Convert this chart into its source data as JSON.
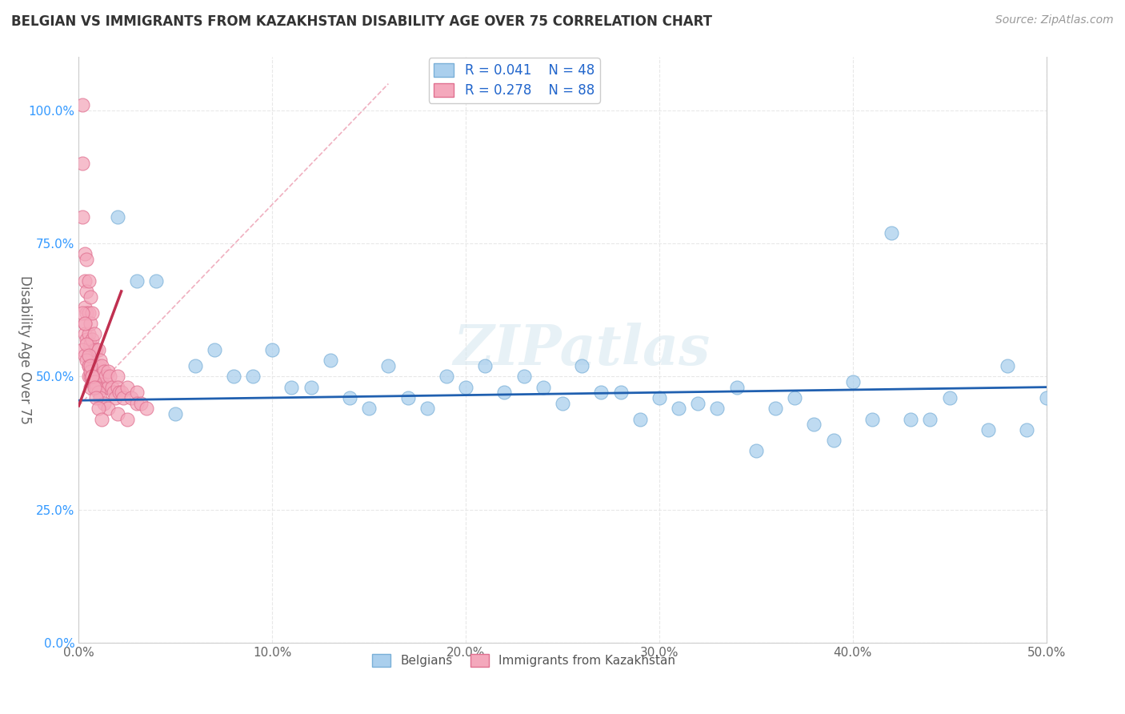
{
  "title": "BELGIAN VS IMMIGRANTS FROM KAZAKHSTAN DISABILITY AGE OVER 75 CORRELATION CHART",
  "source": "Source: ZipAtlas.com",
  "ylabel": "Disability Age Over 75",
  "xlim": [
    0.0,
    0.5
  ],
  "ylim": [
    0.0,
    1.1
  ],
  "x_ticks": [
    0.0,
    0.1,
    0.2,
    0.3,
    0.4,
    0.5
  ],
  "x_tick_labels": [
    "0.0%",
    "10.0%",
    "20.0%",
    "30.0%",
    "40.0%",
    "50.0%"
  ],
  "y_ticks": [
    0.0,
    0.25,
    0.5,
    0.75,
    1.0
  ],
  "y_tick_labels": [
    "0.0%",
    "25.0%",
    "50.0%",
    "75.0%",
    "100.0%"
  ],
  "belgian_color": "#aacfed",
  "kazakh_color": "#f4a8bc",
  "belgian_edge": "#7ab0d8",
  "kazakh_edge": "#e07090",
  "trend_blue": "#2060b0",
  "trend_pink": "#c03050",
  "ref_line_color": "#f0b0c0",
  "grid_color": "#e8e8e8",
  "R_blue": 0.041,
  "N_blue": 48,
  "R_pink": 0.278,
  "N_pink": 88,
  "watermark": "ZIPatlas",
  "blue_trend_x": [
    0.0,
    0.5
  ],
  "blue_trend_y": [
    0.455,
    0.48
  ],
  "pink_trend_x": [
    0.0,
    0.022
  ],
  "pink_trend_y": [
    0.445,
    0.66
  ],
  "ref_line_x": [
    0.0,
    0.16
  ],
  "ref_line_y": [
    0.445,
    1.05
  ],
  "belgians_x": [
    0.02,
    0.04,
    0.07,
    0.09,
    0.1,
    0.13,
    0.16,
    0.19,
    0.21,
    0.23,
    0.26,
    0.28,
    0.3,
    0.32,
    0.34,
    0.37,
    0.4,
    0.42,
    0.45,
    0.48,
    0.03,
    0.06,
    0.08,
    0.11,
    0.14,
    0.17,
    0.2,
    0.24,
    0.27,
    0.31,
    0.33,
    0.36,
    0.38,
    0.41,
    0.44,
    0.47,
    0.49,
    0.12,
    0.15,
    0.18,
    0.22,
    0.25,
    0.29,
    0.35,
    0.39,
    0.43,
    0.5,
    0.05
  ],
  "belgians_y": [
    0.8,
    0.68,
    0.55,
    0.5,
    0.55,
    0.53,
    0.52,
    0.5,
    0.52,
    0.5,
    0.52,
    0.47,
    0.46,
    0.45,
    0.48,
    0.46,
    0.49,
    0.77,
    0.46,
    0.52,
    0.68,
    0.52,
    0.5,
    0.48,
    0.46,
    0.46,
    0.48,
    0.48,
    0.47,
    0.44,
    0.44,
    0.44,
    0.41,
    0.42,
    0.42,
    0.4,
    0.4,
    0.48,
    0.44,
    0.44,
    0.47,
    0.45,
    0.42,
    0.36,
    0.38,
    0.42,
    0.46,
    0.43
  ],
  "kazakh_x": [
    0.002,
    0.002,
    0.002,
    0.003,
    0.003,
    0.003,
    0.003,
    0.003,
    0.004,
    0.004,
    0.004,
    0.004,
    0.005,
    0.005,
    0.005,
    0.005,
    0.005,
    0.005,
    0.006,
    0.006,
    0.006,
    0.006,
    0.006,
    0.006,
    0.007,
    0.007,
    0.007,
    0.007,
    0.007,
    0.008,
    0.008,
    0.008,
    0.008,
    0.009,
    0.009,
    0.009,
    0.01,
    0.01,
    0.01,
    0.01,
    0.011,
    0.011,
    0.012,
    0.012,
    0.013,
    0.013,
    0.014,
    0.015,
    0.015,
    0.016,
    0.017,
    0.018,
    0.019,
    0.02,
    0.02,
    0.021,
    0.022,
    0.023,
    0.025,
    0.027,
    0.03,
    0.03,
    0.032,
    0.035,
    0.002,
    0.003,
    0.004,
    0.005,
    0.006,
    0.007,
    0.008,
    0.009,
    0.01,
    0.011,
    0.013,
    0.015,
    0.02,
    0.025,
    0.004,
    0.005,
    0.006,
    0.007,
    0.008,
    0.009,
    0.01,
    0.012,
    0.002,
    0.003
  ],
  "kazakh_y": [
    1.01,
    0.9,
    0.8,
    0.73,
    0.68,
    0.63,
    0.6,
    0.58,
    0.72,
    0.66,
    0.62,
    0.57,
    0.68,
    0.62,
    0.58,
    0.55,
    0.52,
    0.5,
    0.65,
    0.6,
    0.56,
    0.53,
    0.5,
    0.48,
    0.62,
    0.57,
    0.54,
    0.51,
    0.49,
    0.58,
    0.55,
    0.52,
    0.49,
    0.55,
    0.52,
    0.49,
    0.55,
    0.52,
    0.5,
    0.48,
    0.53,
    0.5,
    0.52,
    0.49,
    0.51,
    0.48,
    0.5,
    0.51,
    0.48,
    0.5,
    0.48,
    0.47,
    0.46,
    0.5,
    0.48,
    0.47,
    0.47,
    0.46,
    0.48,
    0.46,
    0.47,
    0.45,
    0.45,
    0.44,
    0.55,
    0.54,
    0.53,
    0.52,
    0.51,
    0.5,
    0.49,
    0.48,
    0.47,
    0.46,
    0.45,
    0.44,
    0.43,
    0.42,
    0.56,
    0.54,
    0.52,
    0.5,
    0.48,
    0.46,
    0.44,
    0.42,
    0.62,
    0.6
  ]
}
